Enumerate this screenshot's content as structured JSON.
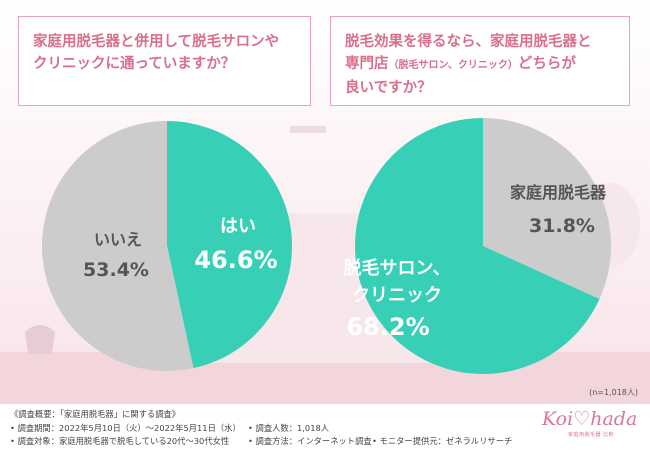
{
  "questions": {
    "q1": {
      "line1": "家庭用脱毛器と併用して脱毛サロンや",
      "line2": "クリニックに通っていますか？"
    },
    "q2": {
      "line1": "脱毛効果を得るなら、家庭用脱毛器と",
      "line2a": "専門店",
      "line2b": "（脱毛サロン、クリニック）",
      "line2c": "どちらが",
      "line3": "良いですか？"
    }
  },
  "chart_data": [
    {
      "type": "pie",
      "labels": [
        "はい",
        "いいえ"
      ],
      "values": [
        46.6,
        53.4
      ],
      "value_labels": [
        "46.6%",
        "53.4%"
      ],
      "colors": [
        "#37d0b6",
        "#cccccc"
      ]
    },
    {
      "type": "pie",
      "labels": [
        "家庭用脱毛器",
        "脱毛サロン、クリニック"
      ],
      "values": [
        31.8,
        68.2
      ],
      "value_labels": [
        "31.8%",
        "68.2%"
      ],
      "colors": [
        "#cccccc",
        "#37d0b6"
      ]
    }
  ],
  "sample_note": "(n=1,018人)",
  "footer": {
    "overview": "《調査概要：「家庭用脱毛器」に関する調査》",
    "period": "• 調査期間：2022年5月10日（火）〜2022年5月11日（水）",
    "count": "• 調査人数：1,018人",
    "target": "• 調査対象：家庭用脱毛器で脱毛している20代〜30代女性",
    "method": "• 調査方法：インターネット調査",
    "provider": "• モニター提供元：ゼネラルリサーチ"
  },
  "logo": {
    "name": "Koi♡hada",
    "sub": "家庭用脱毛器 比較"
  }
}
